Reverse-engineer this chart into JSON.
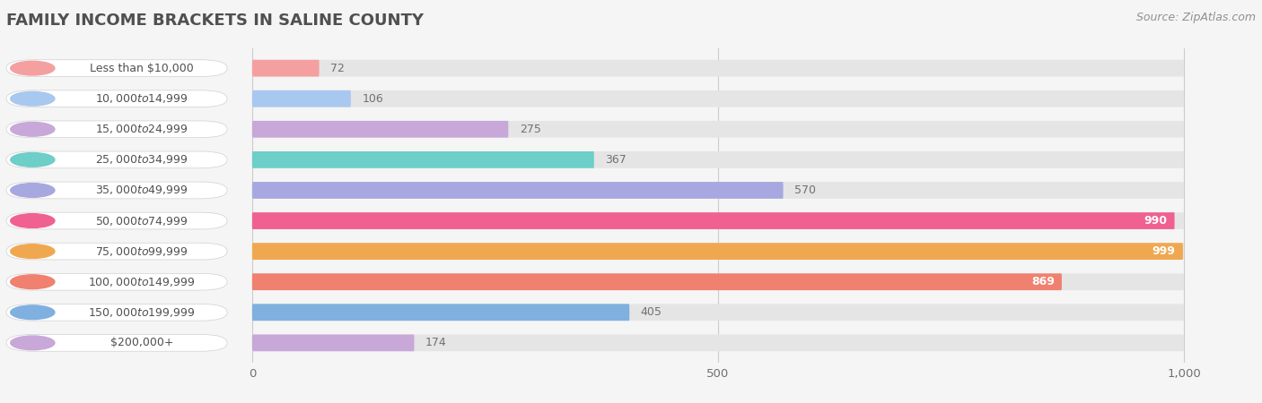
{
  "title": "FAMILY INCOME BRACKETS IN SALINE COUNTY",
  "source": "Source: ZipAtlas.com",
  "categories": [
    "Less than $10,000",
    "$10,000 to $14,999",
    "$15,000 to $24,999",
    "$25,000 to $34,999",
    "$35,000 to $49,999",
    "$50,000 to $74,999",
    "$75,000 to $99,999",
    "$100,000 to $149,999",
    "$150,000 to $199,999",
    "$200,000+"
  ],
  "values": [
    72,
    106,
    275,
    367,
    570,
    990,
    999,
    869,
    405,
    174
  ],
  "bar_colors": [
    "#F4A0A0",
    "#A8C8F0",
    "#C8A8D8",
    "#6ECEC8",
    "#A8A8E0",
    "#F06090",
    "#F0A850",
    "#F08070",
    "#80B0E0",
    "#C8A8D8"
  ],
  "background_color": "#f5f5f5",
  "bar_bg_color": "#e5e5e5",
  "data_max": 1000,
  "xlim_max": 1050,
  "xtick_labels": [
    "0",
    "500",
    "1,000"
  ],
  "xtick_values": [
    0,
    500,
    1000
  ],
  "title_color": "#505050",
  "label_color": "#505050",
  "value_color_inside": "#ffffff",
  "value_color_outside": "#707070",
  "inside_threshold": 850,
  "title_fontsize": 13,
  "label_fontsize": 9,
  "value_fontsize": 9,
  "source_fontsize": 9
}
